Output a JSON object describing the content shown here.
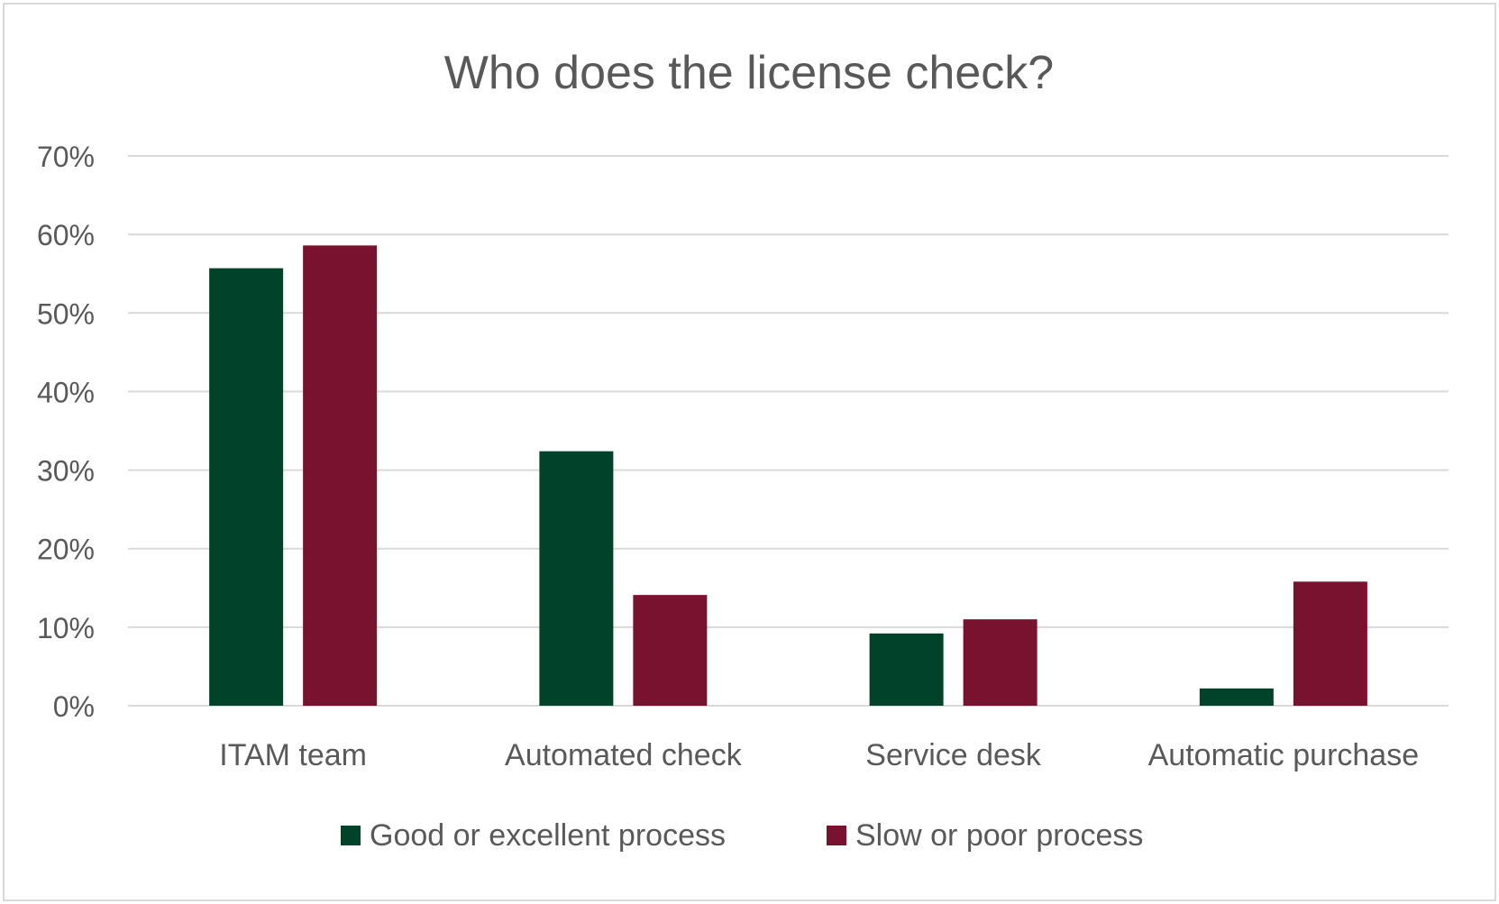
{
  "chart_data": {
    "type": "bar",
    "title": "Who does the license check?",
    "categories": [
      "ITAM team",
      "Automated check",
      "Service desk",
      "Automatic purchase"
    ],
    "series": [
      {
        "name": "Good or excellent process",
        "values": [
          0.557,
          0.324,
          0.092,
          0.022
        ],
        "color": "#00432a"
      },
      {
        "name": "Slow or poor process",
        "values": [
          0.586,
          0.141,
          0.11,
          0.158
        ],
        "color": "#79122e"
      }
    ],
    "ylim": [
      0,
      0.7
    ],
    "yticks": [
      "0%",
      "10%",
      "20%",
      "30%",
      "40%",
      "50%",
      "60%",
      "70%"
    ],
    "grid": true,
    "legend_position": "bottom"
  }
}
